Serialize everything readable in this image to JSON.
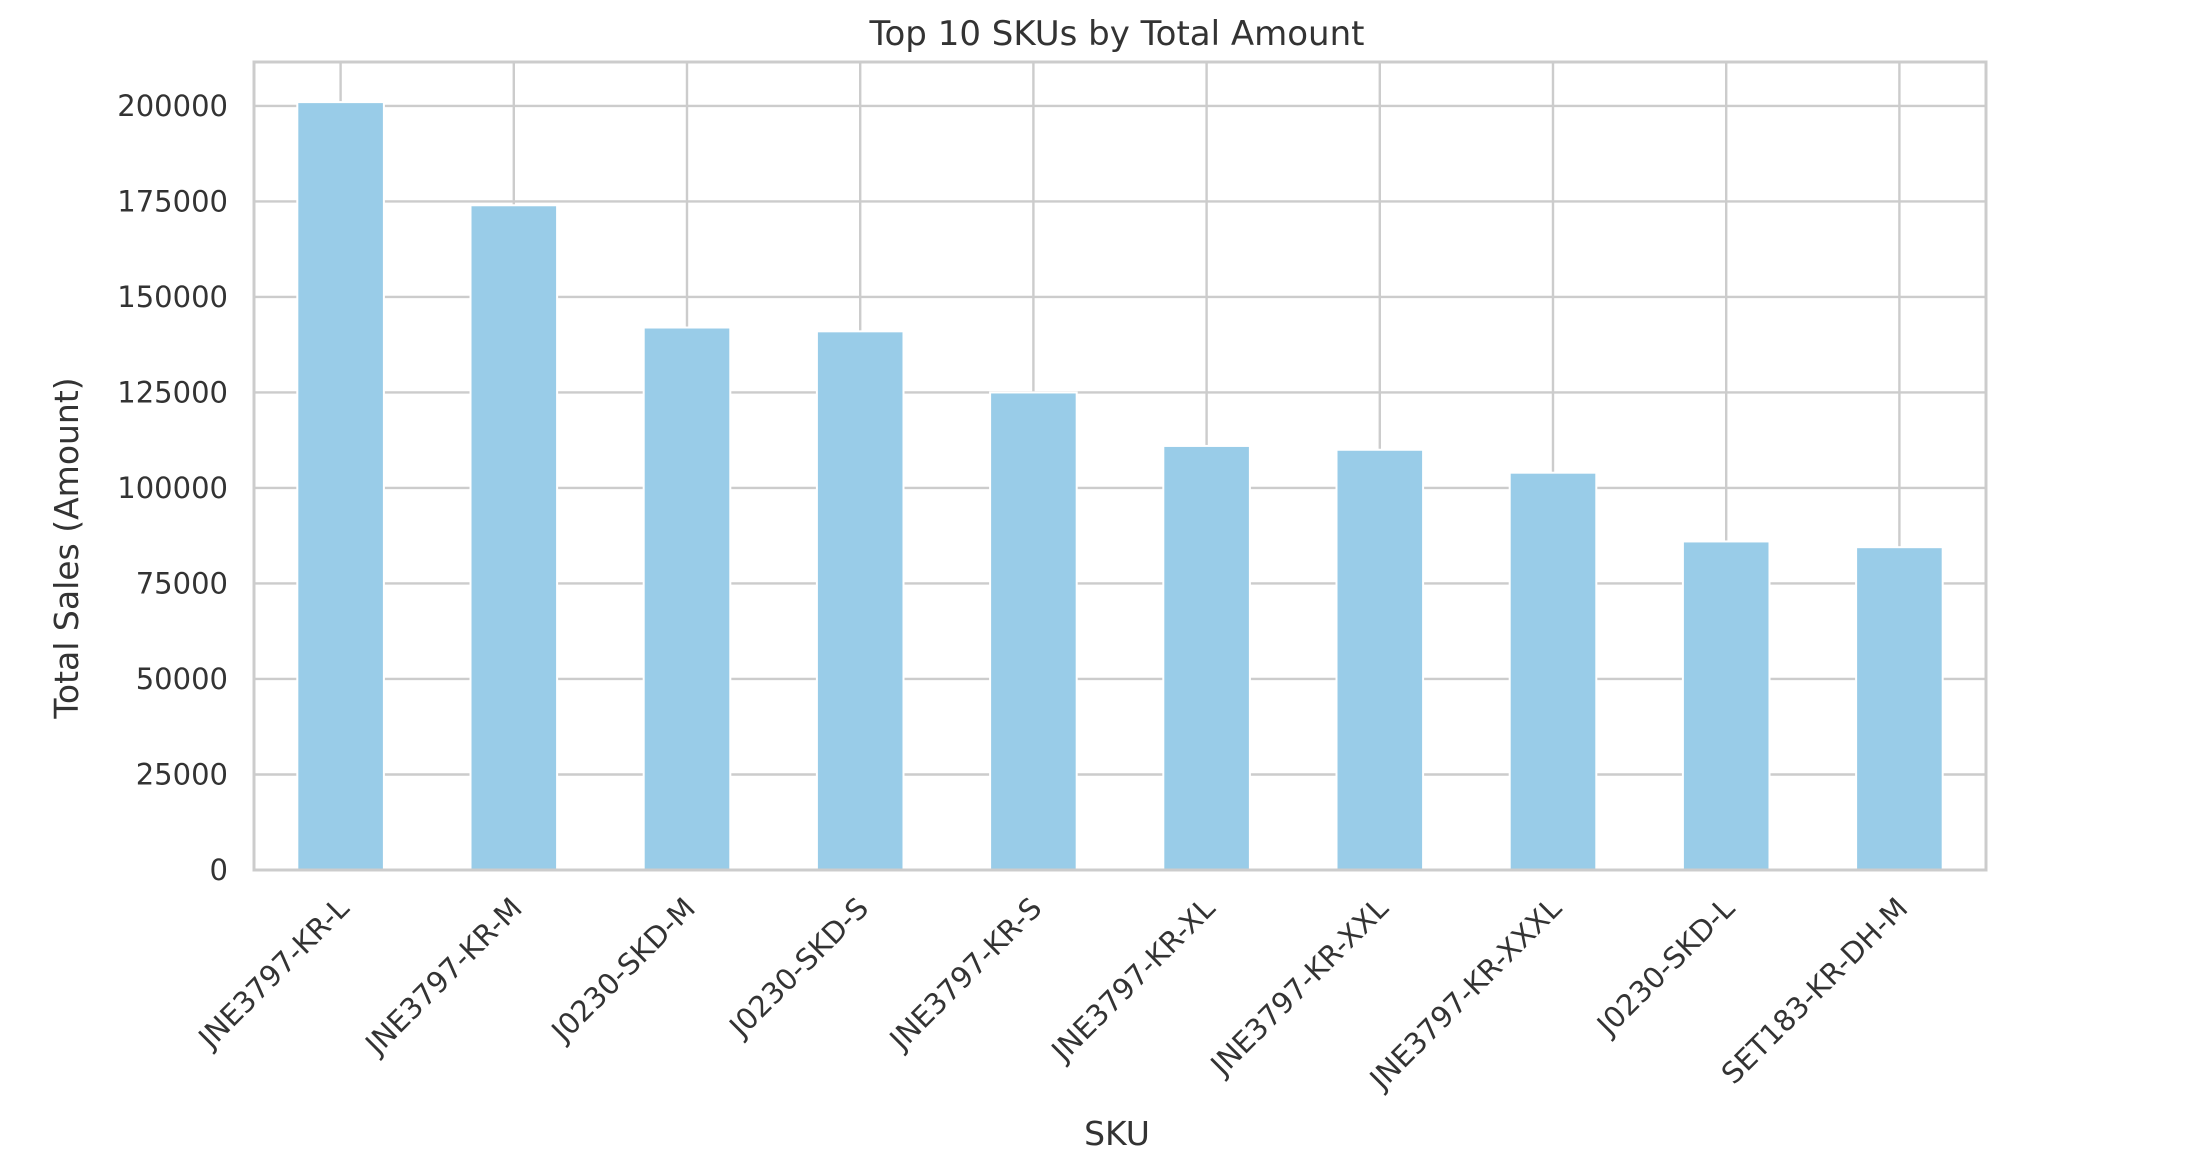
{
  "chart_data": {
    "type": "bar",
    "title": "Top 10 SKUs by Total Amount",
    "xlabel": "SKU",
    "ylabel": "Total Sales (Amount)",
    "categories": [
      "JNE3797-KR-L",
      "JNE3797-KR-M",
      "J0230-SKD-M",
      "J0230-SKD-S",
      "JNE3797-KR-S",
      "JNE3797-KR-XL",
      "JNE3797-KR-XXL",
      "JNE3797-KR-XXXL",
      "J0230-SKD-L",
      "SET183-KR-DH-M"
    ],
    "values": [
      201000,
      174000,
      142000,
      141000,
      125000,
      111000,
      110000,
      104000,
      86000,
      84500
    ],
    "ylim": [
      0,
      211500
    ],
    "yticks": [
      0,
      25000,
      50000,
      75000,
      100000,
      125000,
      150000,
      175000,
      200000
    ],
    "grid": true,
    "bar_color": "#99cce8",
    "grid_color": "#cccccc",
    "text_color": "#333333"
  }
}
